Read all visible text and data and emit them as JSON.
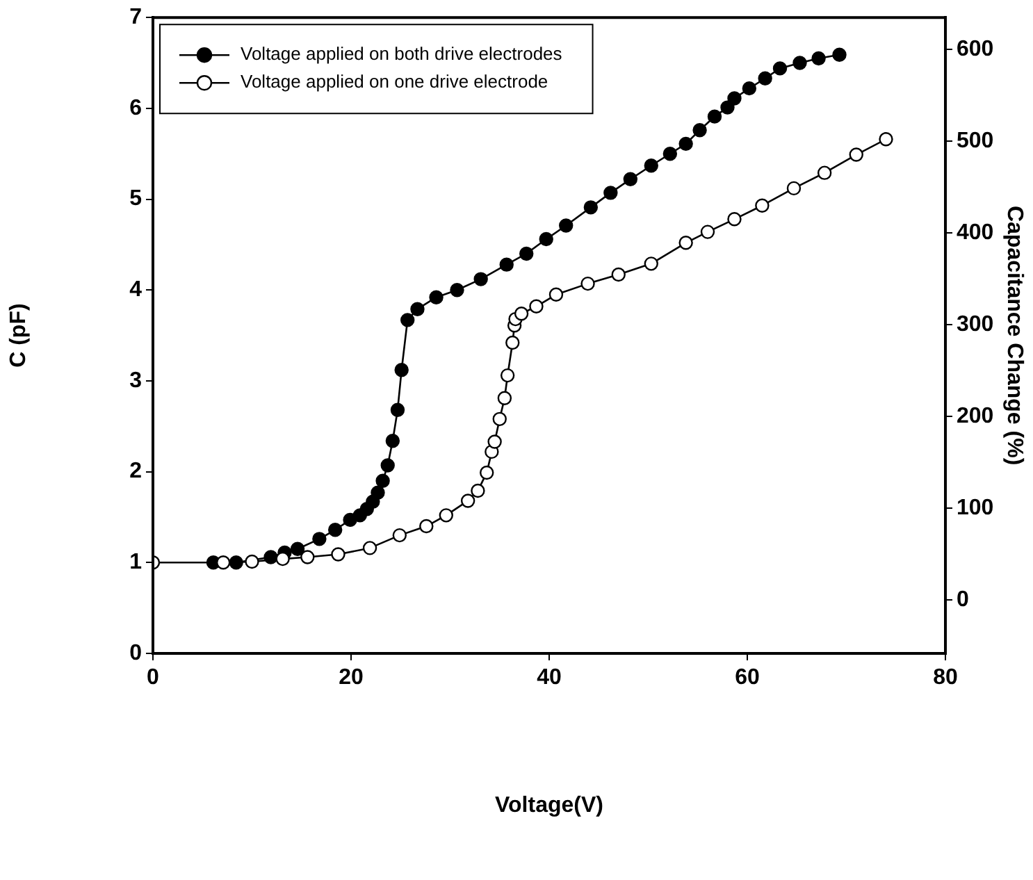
{
  "chart_data": {
    "type": "line",
    "xlabel": "Voltage(V)",
    "ylabel": "C (pF)",
    "y2label": "Capacitance Change (%)",
    "xlim": [
      0,
      80
    ],
    "xticks": [
      0,
      20,
      40,
      60,
      80
    ],
    "ylim": [
      0,
      7
    ],
    "yticks": [
      0,
      1,
      2,
      3,
      4,
      5,
      6,
      7
    ],
    "y2lim": [
      -58,
      635
    ],
    "y2ticks": [
      0,
      100,
      200,
      300,
      400,
      500,
      600
    ],
    "grid": false,
    "legend": "top left",
    "marker": "circle",
    "line_style": "solid",
    "series": [
      {
        "name": "Voltage applied on both drive electrodes",
        "color": "#000000",
        "x": [
          6.1,
          8.4,
          11.9,
          13.3,
          14.6,
          16.8,
          18.4,
          19.9,
          20.9,
          21.6,
          22.2,
          22.7,
          23.2,
          23.7,
          24.2,
          24.7,
          25.1,
          25.7,
          26.7,
          28.6,
          30.7,
          33.1,
          35.7,
          37.7,
          39.7,
          41.7,
          44.2,
          46.2,
          48.2,
          50.3,
          52.2,
          53.8,
          55.2,
          56.7,
          58.0,
          58.7,
          60.2,
          61.8,
          63.3,
          65.3,
          67.2,
          69.3
        ],
        "values": [
          1.0,
          1.0,
          1.06,
          1.11,
          1.15,
          1.26,
          1.36,
          1.47,
          1.52,
          1.59,
          1.67,
          1.77,
          1.9,
          2.07,
          2.34,
          2.68,
          3.12,
          3.67,
          3.79,
          3.92,
          4.0,
          4.12,
          4.28,
          4.4,
          4.56,
          4.71,
          4.91,
          5.07,
          5.22,
          5.37,
          5.5,
          5.61,
          5.76,
          5.91,
          6.01,
          6.11,
          6.22,
          6.33,
          6.44,
          6.5,
          6.55,
          6.59
        ]
      },
      {
        "name": "Voltage applied on one drive electrode",
        "color": "#000000",
        "x": [
          0,
          7.1,
          10.0,
          13.1,
          15.6,
          18.7,
          21.9,
          24.9,
          27.6,
          29.6,
          31.8,
          32.8,
          33.7,
          34.2,
          34.5,
          35.0,
          35.5,
          35.8,
          36.3,
          36.5,
          36.6,
          37.2,
          38.7,
          40.7,
          43.9,
          47.0,
          50.3,
          53.8,
          56.0,
          58.7,
          61.5,
          64.7,
          67.8,
          71.0,
          74.0
        ],
        "values": [
          1.0,
          1.0,
          1.01,
          1.04,
          1.06,
          1.09,
          1.16,
          1.3,
          1.4,
          1.52,
          1.68,
          1.79,
          1.99,
          2.22,
          2.33,
          2.58,
          2.81,
          3.06,
          3.42,
          3.61,
          3.68,
          3.74,
          3.82,
          3.95,
          4.07,
          4.17,
          4.29,
          4.52,
          4.64,
          4.78,
          4.93,
          5.12,
          5.29,
          5.49,
          5.66
        ]
      }
    ]
  }
}
